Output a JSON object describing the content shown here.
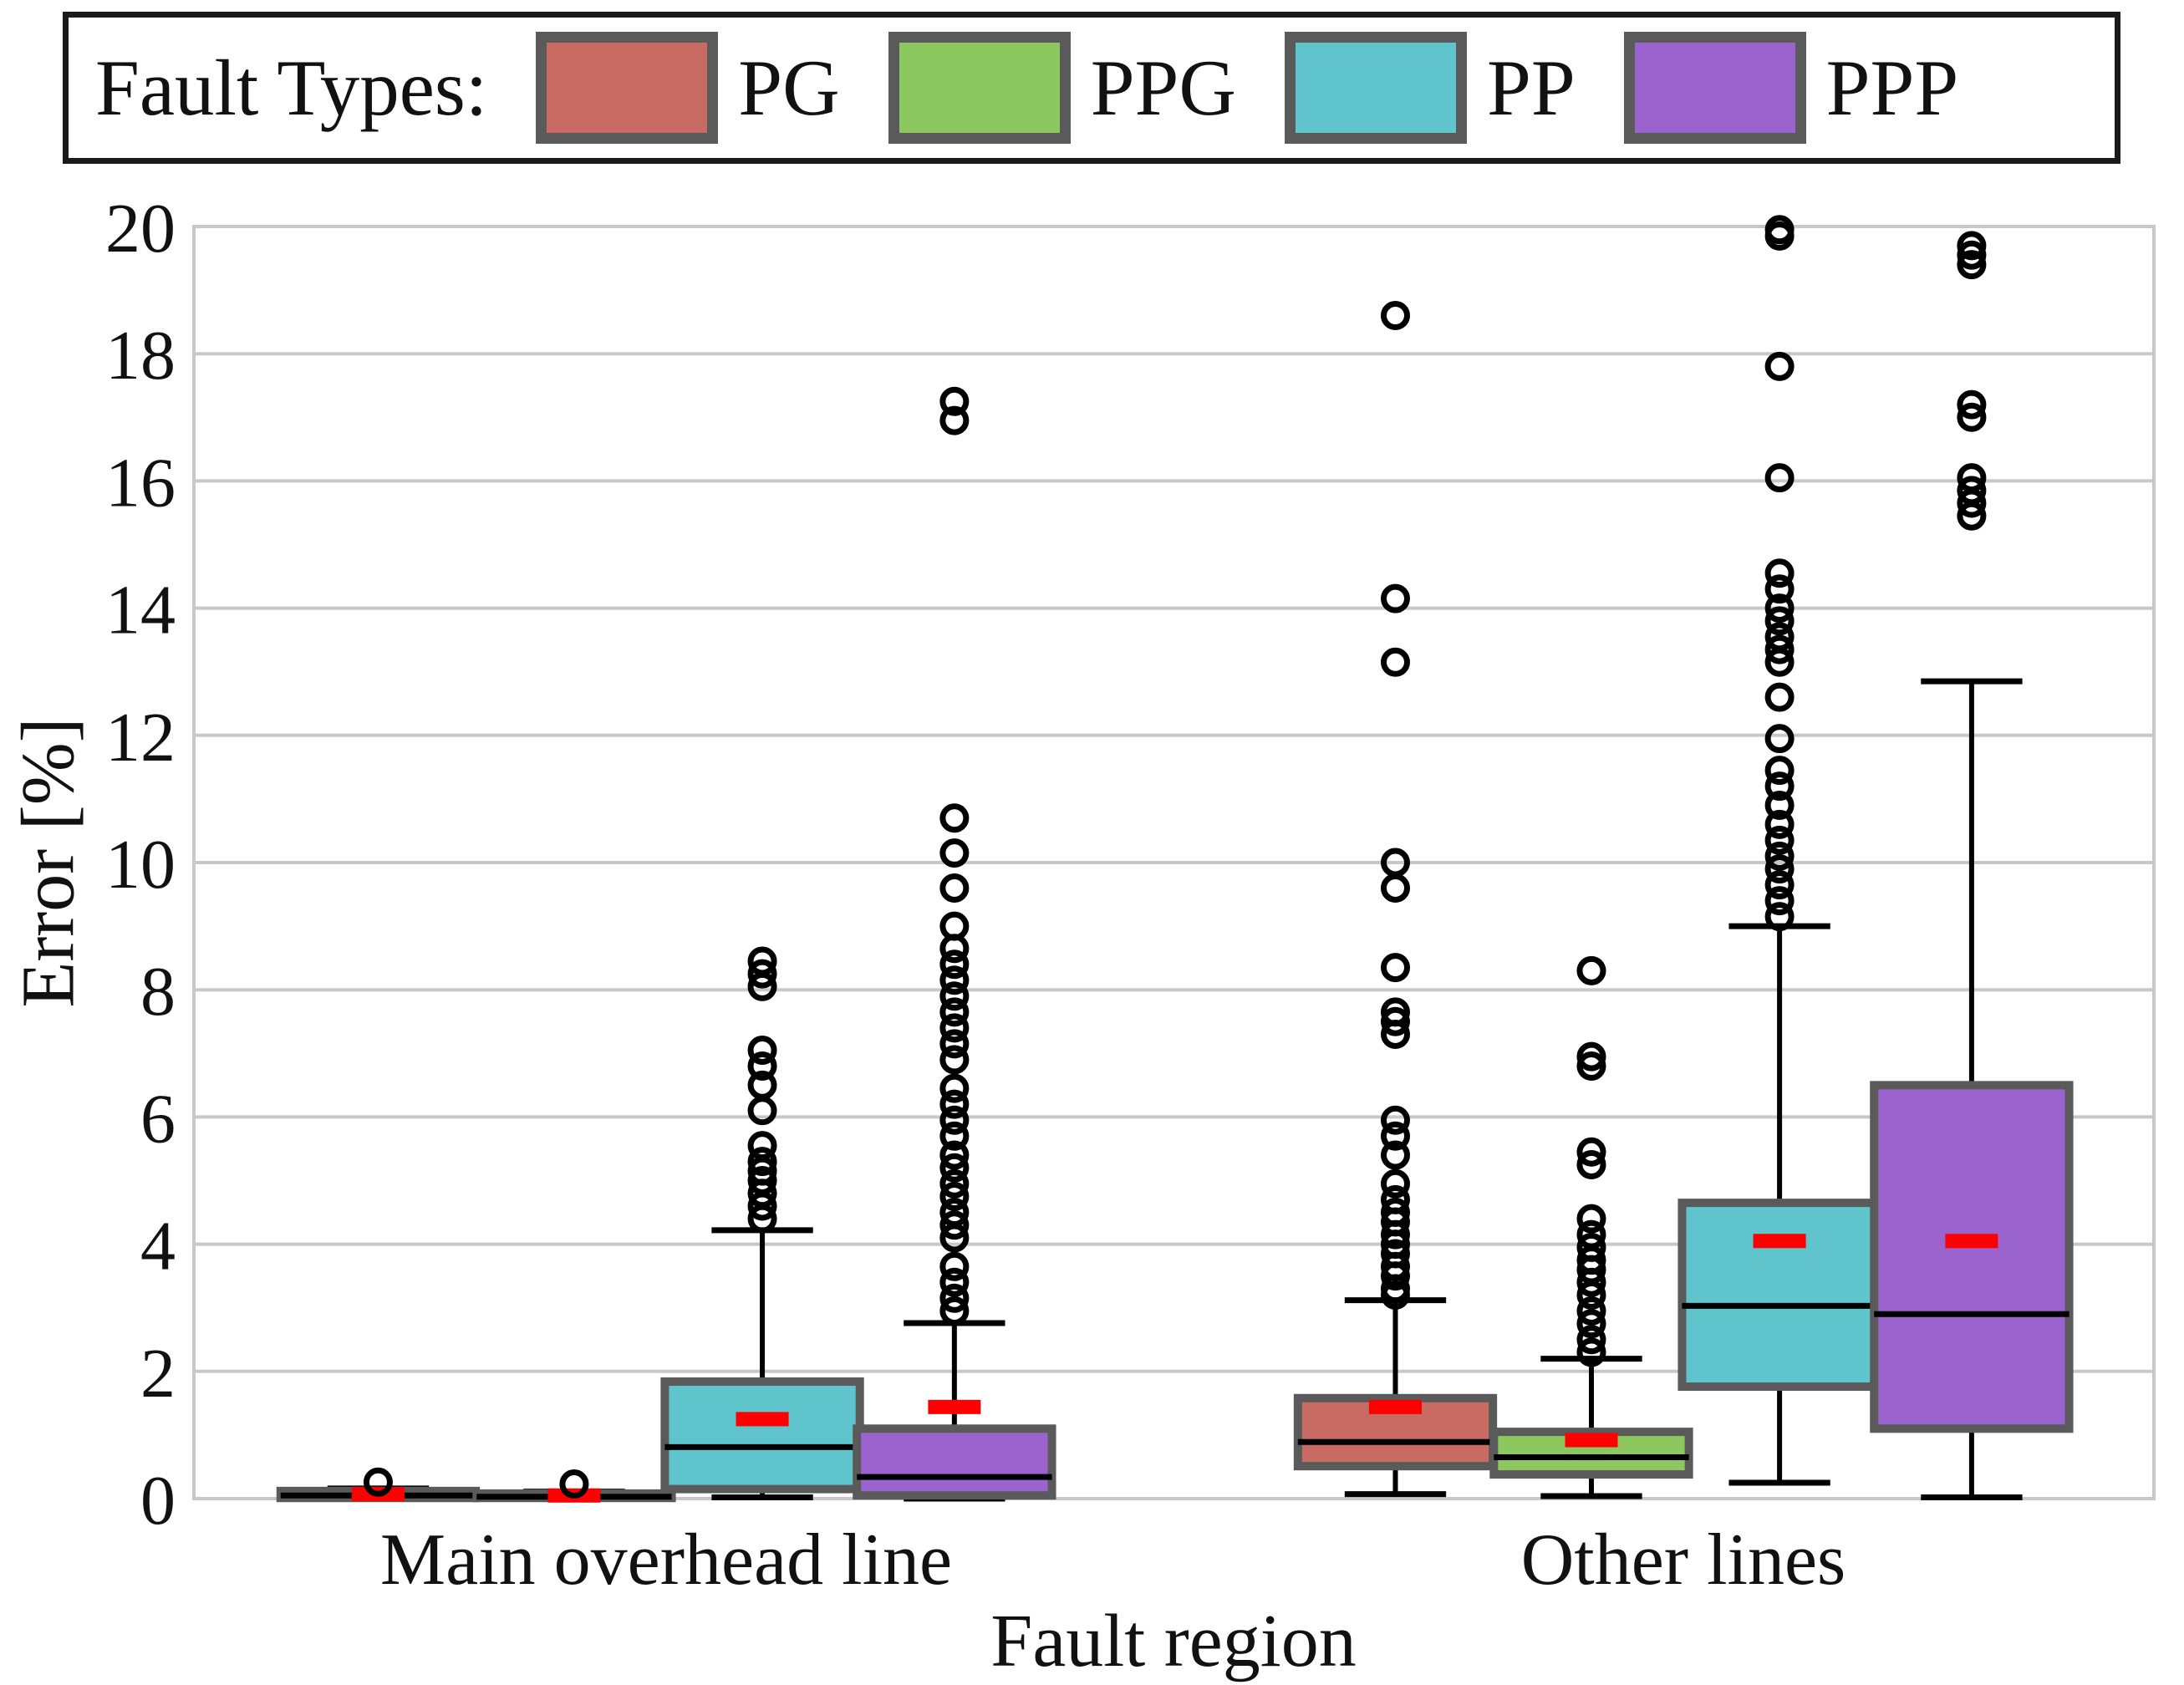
{
  "legend": {
    "title": "Fault Types:",
    "position": "top",
    "border_color": "#1a1a1a",
    "swatch_border_color": "#5a5a5a",
    "items": [
      {
        "label": "PG",
        "color": "#c76b63"
      },
      {
        "label": "PPG",
        "color": "#8dc760"
      },
      {
        "label": "PP",
        "color": "#5fc4cb"
      },
      {
        "label": "PPP",
        "color": "#9a63cd"
      }
    ]
  },
  "chart_data": {
    "type": "grouped_boxplot",
    "title": "",
    "xlabel": "Fault region",
    "ylabel": "Error [%]",
    "ylim": [
      0,
      20
    ],
    "yticks": [
      0,
      2,
      4,
      6,
      8,
      10,
      12,
      14,
      16,
      18,
      20
    ],
    "grid": "horizontal",
    "grid_color": "#c8c8c8",
    "box_edge_color": "#5a5a5a",
    "median_color": "#000000",
    "whisker_color": "#000000",
    "outlier_color": "#000000",
    "mean_marker_color": "#ff0000",
    "groups": [
      {
        "label": "Main overhead line"
      },
      {
        "label": "Other lines"
      }
    ],
    "series_names": [
      "PG",
      "PPG",
      "PP",
      "PPP"
    ],
    "series_colors": [
      "#c76b63",
      "#8dc760",
      "#5fc4cb",
      "#9a63cd"
    ],
    "layout": {
      "group_centers_frac": [
        0.241,
        0.76
      ],
      "series_offsets_frac": [
        -0.147,
        -0.047,
        0.049,
        0.147
      ],
      "box_width_frac": 0.0995,
      "cap_width_frac_of_box": 0.52,
      "mean_width_frac_of_box": 0.27
    },
    "boxes": [
      {
        "group": 0,
        "series": "PG",
        "whislo": 0.0,
        "q1": 0.01,
        "med": 0.05,
        "q3": 0.12,
        "whishi": 0.16,
        "mean": 0.07,
        "outliers": [
          0.26
        ]
      },
      {
        "group": 0,
        "series": "PPG",
        "whislo": 0.0,
        "q1": 0.01,
        "med": 0.03,
        "q3": 0.08,
        "whishi": 0.11,
        "mean": 0.05,
        "outliers": [
          0.23
        ]
      },
      {
        "group": 0,
        "series": "PP",
        "whislo": 0.02,
        "q1": 0.15,
        "med": 0.81,
        "q3": 1.84,
        "whishi": 4.22,
        "mean": 1.25,
        "outliers": [
          4.4,
          4.6,
          4.8,
          5.0,
          5.15,
          5.3,
          5.55,
          6.1,
          6.5,
          6.8,
          7.05,
          8.05,
          8.25,
          8.45
        ]
      },
      {
        "group": 0,
        "series": "PPP",
        "whislo": 0.0,
        "q1": 0.05,
        "med": 0.34,
        "q3": 1.1,
        "whishi": 2.76,
        "mean": 1.44,
        "outliers": [
          2.95,
          3.15,
          3.4,
          3.65,
          4.1,
          4.3,
          4.5,
          4.75,
          4.95,
          5.2,
          5.4,
          5.7,
          5.95,
          6.2,
          6.45,
          6.9,
          7.15,
          7.4,
          7.65,
          7.9,
          8.15,
          8.4,
          8.65,
          9.0,
          9.6,
          10.15,
          10.7,
          16.95,
          17.25
        ]
      },
      {
        "group": 1,
        "series": "PG",
        "whislo": 0.07,
        "q1": 0.51,
        "med": 0.89,
        "q3": 1.58,
        "whishi": 3.12,
        "mean": 1.44,
        "outliers": [
          3.2,
          3.3,
          3.5,
          3.65,
          3.85,
          4.0,
          4.15,
          4.35,
          4.5,
          4.7,
          4.95,
          5.4,
          5.7,
          5.95,
          7.3,
          7.5,
          7.65,
          8.35,
          9.6,
          10.0,
          13.15,
          14.15,
          18.6
        ]
      },
      {
        "group": 1,
        "series": "PPG",
        "whislo": 0.04,
        "q1": 0.38,
        "med": 0.65,
        "q3": 1.05,
        "whishi": 2.2,
        "mean": 0.92,
        "outliers": [
          2.3,
          2.5,
          2.75,
          2.95,
          3.2,
          3.4,
          3.6,
          3.75,
          3.95,
          4.15,
          4.4,
          5.25,
          5.45,
          6.8,
          6.95,
          8.3
        ]
      },
      {
        "group": 1,
        "series": "PP",
        "whislo": 0.25,
        "q1": 1.76,
        "med": 3.03,
        "q3": 4.65,
        "whishi": 9.0,
        "mean": 4.05,
        "outliers": [
          9.15,
          9.4,
          9.65,
          9.9,
          10.1,
          10.35,
          10.6,
          10.9,
          11.2,
          11.45,
          11.95,
          12.6,
          13.15,
          13.35,
          13.55,
          13.8,
          14.0,
          14.3,
          14.55,
          16.05,
          17.8,
          19.85,
          19.95
        ]
      },
      {
        "group": 1,
        "series": "PPP",
        "whislo": 0.02,
        "q1": 1.1,
        "med": 2.9,
        "q3": 6.5,
        "whishi": 12.85,
        "mean": 4.05,
        "outliers": [
          15.45,
          15.65,
          15.85,
          16.05,
          17.0,
          17.2,
          19.4,
          19.55,
          19.7
        ]
      }
    ]
  }
}
